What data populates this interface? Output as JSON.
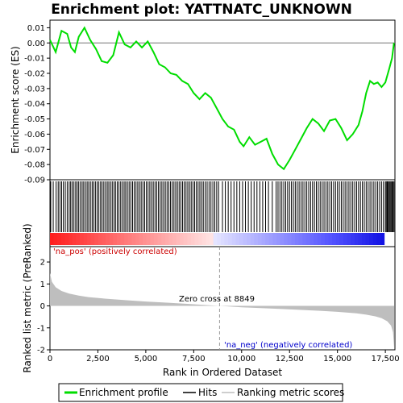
{
  "chart_data": {
    "type": "line",
    "title": "Enrichment plot: YATTNATC_UNKNOWN",
    "top_panel": {
      "ylabel": "Enrichment score (ES)",
      "ylim": [
        -0.09,
        0.015
      ],
      "yticks": [
        0.01,
        0.0,
        -0.01,
        -0.02,
        -0.03,
        -0.04,
        -0.05,
        -0.06,
        -0.07,
        -0.08,
        -0.09
      ],
      "ytick_labels": [
        "0.01",
        "0.00",
        "-0.01",
        "-0.02",
        "-0.03",
        "-0.04",
        "-0.05",
        "-0.06",
        "-0.07",
        "-0.08",
        "-0.09"
      ],
      "series_name": "Enrichment profile",
      "line_color": "#00dd00",
      "x": [
        0,
        300,
        600,
        900,
        1100,
        1300,
        1500,
        1800,
        2100,
        2400,
        2700,
        3000,
        3300,
        3600,
        3900,
        4200,
        4500,
        4800,
        5100,
        5400,
        5700,
        6000,
        6300,
        6600,
        6900,
        7200,
        7500,
        7800,
        8100,
        8400,
        8700,
        9000,
        9300,
        9600,
        9900,
        10100,
        10400,
        10700,
        11000,
        11300,
        11600,
        11900,
        12200,
        12500,
        12800,
        13100,
        13400,
        13700,
        14000,
        14300,
        14600,
        14900,
        15200,
        15500,
        15800,
        16100,
        16300,
        16500,
        16700,
        16900,
        17100,
        17300,
        17500,
        17700,
        17850,
        17950
      ],
      "y": [
        0.002,
        -0.006,
        0.008,
        0.006,
        -0.003,
        -0.006,
        0.004,
        0.01,
        0.002,
        -0.004,
        -0.012,
        -0.013,
        -0.008,
        0.007,
        -0.001,
        -0.003,
        0.001,
        -0.003,
        0.001,
        -0.006,
        -0.014,
        -0.016,
        -0.02,
        -0.021,
        -0.025,
        -0.027,
        -0.033,
        -0.037,
        -0.033,
        -0.036,
        -0.043,
        -0.05,
        -0.055,
        -0.057,
        -0.065,
        -0.068,
        -0.062,
        -0.067,
        -0.065,
        -0.063,
        -0.073,
        -0.08,
        -0.083,
        -0.077,
        -0.07,
        -0.063,
        -0.056,
        -0.05,
        -0.053,
        -0.058,
        -0.051,
        -0.05,
        -0.056,
        -0.064,
        -0.06,
        -0.054,
        -0.045,
        -0.033,
        -0.025,
        -0.027,
        -0.026,
        -0.029,
        -0.026,
        -0.017,
        -0.01,
        0.0
      ]
    },
    "hits": [
      40,
      170,
      320,
      430,
      520,
      610,
      700,
      800,
      900,
      1000,
      1080,
      1160,
      1250,
      1340,
      1420,
      1500,
      1590,
      1680,
      1760,
      1850,
      1940,
      2020,
      2110,
      2200,
      2280,
      2370,
      2460,
      2550,
      2640,
      2720,
      2810,
      2900,
      2990,
      3070,
      3160,
      3250,
      3340,
      3420,
      3510,
      3600,
      3690,
      3780,
      3870,
      3950,
      4040,
      4130,
      4220,
      4310,
      4400,
      4490,
      4580,
      4670,
      4760,
      4850,
      4940,
      5030,
      5120,
      5210,
      5300,
      5390,
      5480,
      5570,
      5660,
      5750,
      5840,
      5930,
      6020,
      6110,
      6200,
      6290,
      6380,
      6470,
      6560,
      6650,
      6740,
      6830,
      6920,
      7010,
      7100,
      7190,
      7280,
      7370,
      7460,
      7550,
      7640,
      7730,
      7820,
      7910,
      8000,
      8100,
      8200,
      8300,
      8400,
      8500,
      8600,
      8700,
      8800,
      9000,
      9150,
      9300,
      9450,
      9600,
      9750,
      9900,
      10050,
      10200,
      10350,
      10500,
      10650,
      10800,
      10950,
      11100,
      11250,
      11400,
      11600,
      11800,
      11900,
      12000,
      12100,
      12200,
      12300,
      12400,
      12500,
      12600,
      12700,
      12800,
      12900,
      13000,
      13100,
      13200,
      13300,
      13400,
      13500,
      13600,
      13700,
      13800,
      13900,
      14000,
      14100,
      14200,
      14300,
      14400,
      14500,
      14600,
      14700,
      14800,
      14900,
      15000,
      15100,
      15200,
      15300,
      15400,
      15500,
      15600,
      15700,
      15800,
      15900,
      16000,
      16100,
      16200,
      16300,
      16400,
      16500,
      16600,
      16700,
      16800,
      16900,
      17000,
      17100,
      17200,
      17300,
      17400,
      17500,
      17550,
      17600,
      17650,
      17700,
      17750,
      17800,
      17850,
      17900,
      17950
    ],
    "bottom_panel": {
      "ylabel": "Ranked list metric (PreRanked)",
      "xlabel": "Rank in Ordered Dataset",
      "ylim": [
        -2,
        2.7
      ],
      "yticks": [
        2,
        1,
        0,
        -1,
        -2
      ],
      "ytick_labels": [
        "2",
        "1",
        "0",
        "-1",
        "-2"
      ],
      "metric_x": [
        0,
        100,
        300,
        600,
        1000,
        1500,
        2000,
        3000,
        4000,
        5000,
        6000,
        7000,
        8000,
        8849,
        10000,
        11000,
        12000,
        13000,
        14000,
        15000,
        16000,
        16500,
        17000,
        17300,
        17600,
        17800,
        17900,
        17960
      ],
      "metric_y": [
        1.5,
        1.1,
        0.85,
        0.68,
        0.56,
        0.47,
        0.4,
        0.32,
        0.26,
        0.2,
        0.15,
        0.1,
        0.05,
        0.0,
        -0.06,
        -0.1,
        -0.14,
        -0.18,
        -0.22,
        -0.27,
        -0.34,
        -0.4,
        -0.48,
        -0.56,
        -0.7,
        -0.9,
        -1.2,
        -1.9
      ],
      "fill_color": "#bebebe"
    },
    "xlim": [
      0,
      18000
    ],
    "xticks": [
      0,
      2500,
      5000,
      7500,
      10000,
      12500,
      15000,
      17500
    ],
    "xtick_labels": [
      "0",
      "2,500",
      "5,000",
      "7,500",
      "10,000",
      "12,500",
      "15,000",
      "17,500"
    ],
    "zero_cross": 8849,
    "annotations": {
      "pos": "'na_pos' (positively correlated)",
      "neg": "'na_neg' (negatively correlated)",
      "zero": "Zero cross at 8849"
    },
    "legend": {
      "placement": "bottom",
      "items": [
        {
          "label": "Enrichment profile",
          "color": "#00dd00"
        },
        {
          "label": "Hits",
          "color": "#000000"
        },
        {
          "label": "Ranking metric scores",
          "color": "#bebebe"
        }
      ]
    }
  }
}
